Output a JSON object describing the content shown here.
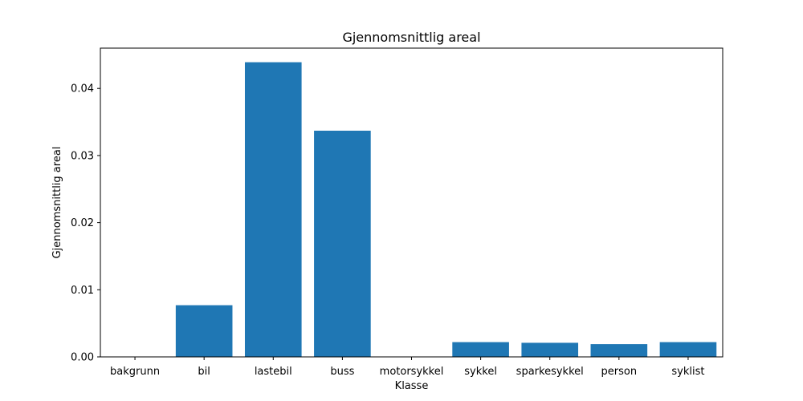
{
  "chart_data": {
    "type": "bar",
    "title": "Gjennomsnittlig areal",
    "xlabel": "Klasse",
    "ylabel": "Gjennomsnittlig areal",
    "categories": [
      "bakgrunn",
      "bil",
      "lastebil",
      "buss",
      "motorsykkel",
      "sykkel",
      "sparkesykkel",
      "person",
      "syklist"
    ],
    "values": [
      0.0,
      0.0077,
      0.0439,
      0.0337,
      0.0,
      0.0022,
      0.0021,
      0.0019,
      0.0022
    ],
    "ylim": [
      0,
      0.046
    ],
    "yticks": [
      0.0,
      0.01,
      0.02,
      0.03,
      0.04
    ],
    "ytick_labels": [
      "0.00",
      "0.01",
      "0.02",
      "0.03",
      "0.04"
    ],
    "bar_color": "#1f77b4",
    "grid": false,
    "legend": "none"
  }
}
